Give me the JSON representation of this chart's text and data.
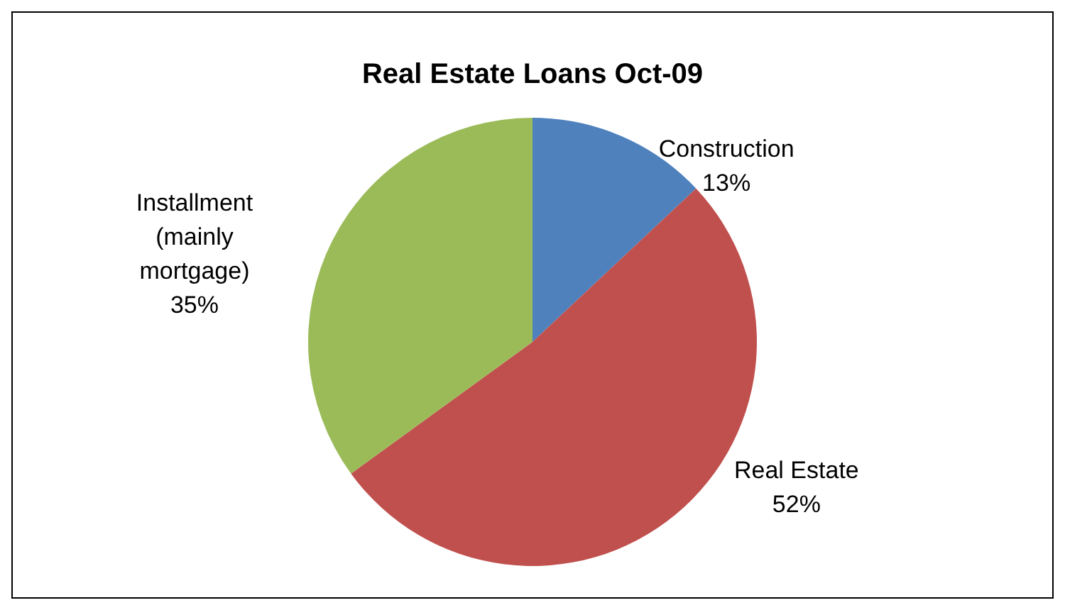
{
  "chart_data": {
    "type": "pie",
    "title": "Real Estate Loans Oct-09",
    "categories": [
      "Construction",
      "Real Estate",
      "Installment (mainly mortgage)"
    ],
    "values": [
      13,
      52,
      35
    ],
    "colors": [
      "#4f81bd",
      "#c0504d",
      "#9bbb59"
    ],
    "value_labels": [
      "13%",
      "52%",
      "35%"
    ],
    "legend": false
  }
}
